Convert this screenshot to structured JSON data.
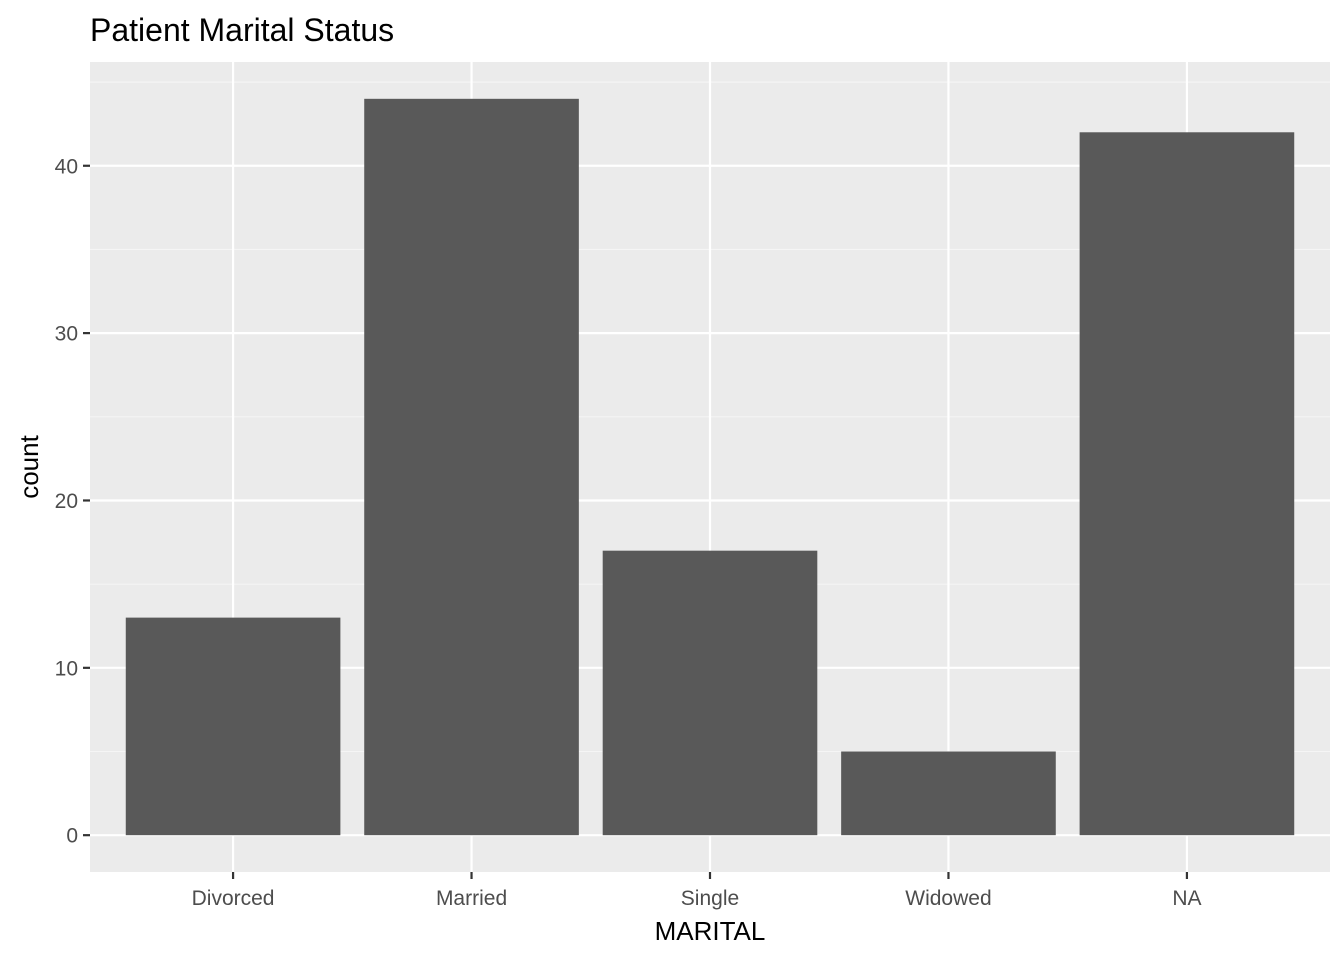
{
  "chart_data": {
    "type": "bar",
    "title": "Patient Marital Status",
    "xlabel": "MARITAL",
    "ylabel": "count",
    "categories": [
      "Divorced",
      "Married",
      "Single",
      "Widowed",
      "NA"
    ],
    "values": [
      13,
      44,
      17,
      5,
      42
    ],
    "ylim": [
      -2.2,
      46.2
    ],
    "yticks": [
      0,
      10,
      20,
      30,
      40
    ],
    "ytick_labels": [
      "0",
      "10",
      "20",
      "30",
      "40"
    ],
    "grid": true,
    "legend": "none",
    "colors": {
      "bar": "#595959",
      "panel_background": "#ebebeb",
      "grid_major": "#ffffff",
      "grid_minor": "#f5f5f5",
      "tick_text": "#4d4d4d",
      "tick_mark": "#333333"
    }
  }
}
